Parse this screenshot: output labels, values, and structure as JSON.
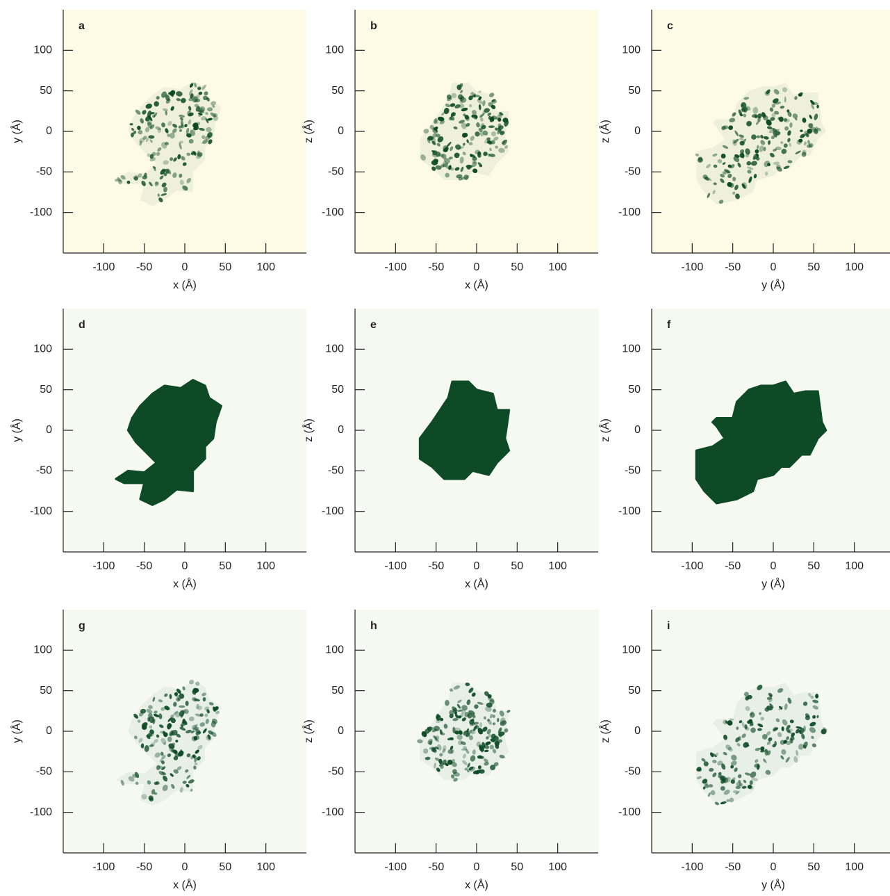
{
  "chart_data": [
    {
      "type": "heatmap",
      "label": "a",
      "xlabel": "x (Å)",
      "ylabel": "y (Å)",
      "xlim": [
        -150,
        150
      ],
      "ylim": [
        -150,
        150
      ],
      "xticks": [
        -100,
        -50,
        0,
        50,
        100
      ],
      "yticks": [
        -100,
        -50,
        0,
        50,
        100
      ],
      "background": "#fdfae6",
      "color": "#0d4a25"
    },
    {
      "type": "heatmap",
      "label": "b",
      "xlabel": "x (Å)",
      "ylabel": "z (Å)",
      "xlim": [
        -150,
        150
      ],
      "ylim": [
        -150,
        150
      ],
      "xticks": [
        -100,
        -50,
        0,
        50,
        100
      ],
      "yticks": [
        -100,
        -50,
        0,
        50,
        100
      ],
      "background": "#fdfae6",
      "color": "#0d4a25"
    },
    {
      "type": "heatmap",
      "label": "c",
      "xlabel": "y (Å)",
      "ylabel": "z (Å)",
      "xlim": [
        -150,
        150
      ],
      "ylim": [
        -150,
        150
      ],
      "xticks": [
        -100,
        -50,
        0,
        50,
        100
      ],
      "yticks": [
        -100,
        -50,
        0,
        50,
        100
      ],
      "background": "#fdfae6",
      "color": "#0d4a25"
    },
    {
      "type": "heatmap",
      "label": "d",
      "xlabel": "x (Å)",
      "ylabel": "y (Å)",
      "xlim": [
        -150,
        150
      ],
      "ylim": [
        -150,
        150
      ],
      "xticks": [
        -100,
        -50,
        0,
        50,
        100
      ],
      "yticks": [
        -100,
        -50,
        0,
        50,
        100
      ],
      "background": "#f5f9f2",
      "color": "#0d4a25"
    },
    {
      "type": "heatmap",
      "label": "e",
      "xlabel": "x (Å)",
      "ylabel": "z (Å)",
      "xlim": [
        -150,
        150
      ],
      "ylim": [
        -150,
        150
      ],
      "xticks": [
        -100,
        -50,
        0,
        50,
        100
      ],
      "yticks": [
        -100,
        -50,
        0,
        50,
        100
      ],
      "background": "#f5f9f2",
      "color": "#0d4a25"
    },
    {
      "type": "heatmap",
      "label": "f",
      "xlabel": "y (Å)",
      "ylabel": "z (Å)",
      "xlim": [
        -150,
        150
      ],
      "ylim": [
        -150,
        150
      ],
      "xticks": [
        -100,
        -50,
        0,
        50,
        100
      ],
      "yticks": [
        -100,
        -50,
        0,
        50,
        100
      ],
      "background": "#f5f9f2",
      "color": "#0d4a25"
    },
    {
      "type": "heatmap",
      "label": "g",
      "xlabel": "x (Å)",
      "ylabel": "y (Å)",
      "xlim": [
        -150,
        150
      ],
      "ylim": [
        -150,
        150
      ],
      "xticks": [
        -100,
        -50,
        0,
        50,
        100
      ],
      "yticks": [
        -100,
        -50,
        0,
        50,
        100
      ],
      "background": "#f5f9f2",
      "color": "#0d4a25"
    },
    {
      "type": "heatmap",
      "label": "h",
      "xlabel": "x (Å)",
      "ylabel": "z (Å)",
      "xlim": [
        -150,
        150
      ],
      "ylim": [
        -150,
        150
      ],
      "xticks": [
        -100,
        -50,
        0,
        50,
        100
      ],
      "yticks": [
        -100,
        -50,
        0,
        50,
        100
      ],
      "background": "#f5f9f2",
      "color": "#0d4a25"
    },
    {
      "type": "heatmap",
      "label": "i",
      "xlabel": "y (Å)",
      "ylabel": "z (Å)",
      "xlim": [
        -150,
        150
      ],
      "ylim": [
        -150,
        150
      ],
      "xticks": [
        -100,
        -50,
        0,
        50,
        100
      ],
      "yticks": [
        -100,
        -50,
        0,
        50,
        100
      ],
      "background": "#f5f9f2",
      "color": "#0d4a25"
    }
  ]
}
